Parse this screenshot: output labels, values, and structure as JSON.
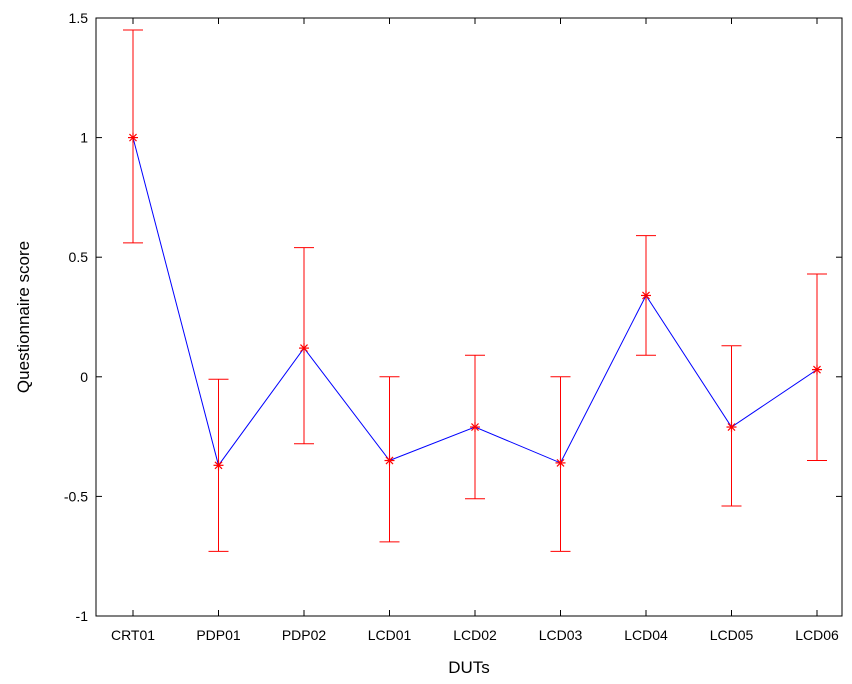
{
  "chart_data": {
    "type": "line",
    "title": "",
    "xlabel": "DUTs",
    "ylabel": "Questionnaire score",
    "categories": [
      "CRT01",
      "PDP01",
      "PDP02",
      "LCD01",
      "LCD02",
      "LCD03",
      "LCD04",
      "LCD05",
      "LCD06"
    ],
    "series": [
      {
        "values": [
          1.0,
          -0.37,
          0.12,
          -0.35,
          -0.21,
          -0.36,
          0.34,
          -0.21,
          0.03
        ],
        "error_low": [
          0.56,
          -0.73,
          -0.28,
          -0.69,
          -0.51,
          -0.73,
          0.09,
          -0.54,
          -0.35
        ],
        "error_high": [
          1.45,
          -0.01,
          0.54,
          0.0,
          0.09,
          0.0,
          0.59,
          0.13,
          0.43
        ],
        "line_color": "#0000ff",
        "marker_color": "#ff0000",
        "marker": "asterisk"
      }
    ],
    "ylim": [
      -1,
      1.5
    ],
    "yticks": [
      -1,
      -0.5,
      0,
      0.5,
      1,
      1.5
    ],
    "ytick_labels": [
      "-1",
      "-0.5",
      "0",
      "0.5",
      "1",
      "1.5"
    ],
    "grid": false,
    "legend": "none"
  }
}
